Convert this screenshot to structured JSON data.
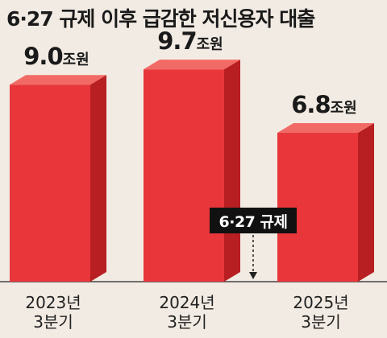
{
  "title": "6·27 규제 이후 급감한 저신용자 대출",
  "annotation": "6·27 규제",
  "unit": "조원",
  "colors": {
    "bar_front": "#e8363a",
    "bar_top": "#f26a66",
    "bar_side": "#b81f22",
    "background": "#f2ebe3"
  },
  "chart_data": {
    "type": "bar",
    "title": "6·27 규제 이후 급감한 저신용자 대출",
    "xlabel": "",
    "ylabel": "",
    "categories": [
      {
        "line1": "2023년",
        "line2": "3분기"
      },
      {
        "line1": "2024년",
        "line2": "3분기"
      },
      {
        "line1": "2025년",
        "line2": "3분기"
      }
    ],
    "values": [
      9.0,
      9.7,
      6.8
    ],
    "value_labels": [
      "9.0",
      "9.7",
      "6.8"
    ],
    "ylim": [
      0,
      10.5
    ]
  }
}
